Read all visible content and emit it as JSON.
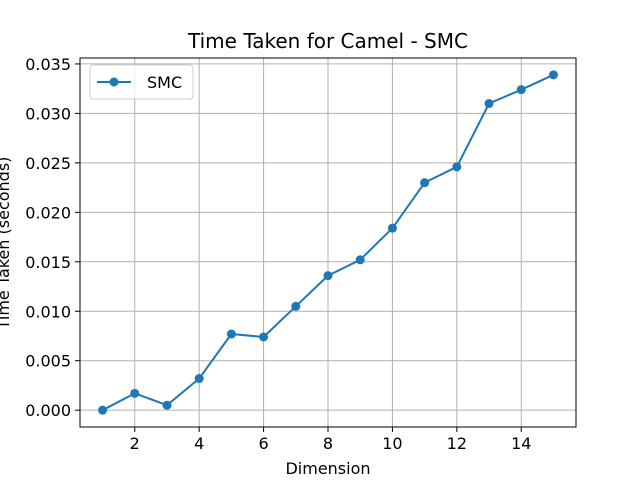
{
  "chart_data": {
    "type": "line",
    "title": "Time Taken for Camel - SMC",
    "xlabel": "Dimension",
    "ylabel": "Time Taken (seconds)",
    "x": [
      1,
      2,
      3,
      4,
      5,
      6,
      7,
      8,
      9,
      10,
      11,
      12,
      13,
      14,
      15
    ],
    "series": [
      {
        "name": "SMC",
        "color": "#1f77b4",
        "marker": "circle",
        "values": [
          0.0,
          0.0017,
          0.0005,
          0.0032,
          0.0077,
          0.0074,
          0.0105,
          0.0136,
          0.0152,
          0.0184,
          0.023,
          0.0246,
          0.031,
          0.0324,
          0.0339
        ]
      }
    ],
    "xlim": [
      0.3,
      15.7
    ],
    "ylim": [
      -0.0017,
      0.0356
    ],
    "xticks": [
      2,
      4,
      6,
      8,
      10,
      12,
      14
    ],
    "xtick_labels": [
      "2",
      "4",
      "6",
      "8",
      "10",
      "12",
      "14"
    ],
    "yticks": [
      0,
      0.005,
      0.01,
      0.015,
      0.02,
      0.025,
      0.03,
      0.035
    ],
    "ytick_labels": [
      "0.000",
      "0.005",
      "0.010",
      "0.015",
      "0.020",
      "0.025",
      "0.030",
      "0.035"
    ],
    "grid": true,
    "legend_position": "upper-left"
  }
}
